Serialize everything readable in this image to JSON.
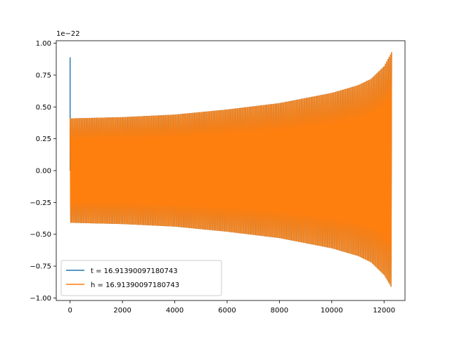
{
  "chart_data": {
    "type": "line",
    "title": "",
    "xlabel": "",
    "ylabel": "",
    "y_offset_label": "1e−22",
    "xlim": [
      -530,
      12800
    ],
    "ylim": [
      -1.02,
      1.02
    ],
    "xticks": [
      0,
      2000,
      4000,
      6000,
      8000,
      10000,
      12000
    ],
    "xtick_labels": [
      "0",
      "2000",
      "4000",
      "6000",
      "8000",
      "10000",
      "12000"
    ],
    "yticks": [
      -1.0,
      -0.75,
      -0.5,
      -0.25,
      0.0,
      0.25,
      0.5,
      0.75,
      1.0
    ],
    "ytick_labels": [
      "−1.00",
      "−0.75",
      "−0.50",
      "−0.25",
      "0.00",
      "0.25",
      "0.50",
      "0.75",
      "1.00"
    ],
    "grid": false,
    "legend_position": "lower-left",
    "series": [
      {
        "name": "t = 16.91390097180743",
        "color": "#1f77b4",
        "envelope": {
          "x": [
            0,
            2000,
            4000,
            6000,
            8000,
            10000,
            11000,
            11500,
            12000,
            12288
          ],
          "upper": [
            0.41,
            0.42,
            0.44,
            0.48,
            0.53,
            0.61,
            0.67,
            0.72,
            0.82,
            0.93
          ],
          "lower": [
            -0.41,
            -0.42,
            -0.44,
            -0.48,
            -0.53,
            -0.61,
            -0.67,
            -0.72,
            -0.82,
            -0.92
          ]
        },
        "spike": {
          "x": 0,
          "y_max": 0.89
        },
        "oscillation_cycles": 260
      },
      {
        "name": "h = 16.91390097180743",
        "color": "#ff7f0e",
        "envelope": {
          "x": [
            0,
            2000,
            4000,
            6000,
            8000,
            10000,
            11000,
            11500,
            12000,
            12288
          ],
          "upper": [
            0.41,
            0.42,
            0.44,
            0.48,
            0.53,
            0.61,
            0.67,
            0.72,
            0.82,
            0.93
          ],
          "lower": [
            -0.41,
            -0.42,
            -0.44,
            -0.48,
            -0.53,
            -0.61,
            -0.67,
            -0.72,
            -0.82,
            -0.92
          ]
        },
        "oscillation_cycles": 260
      }
    ]
  }
}
